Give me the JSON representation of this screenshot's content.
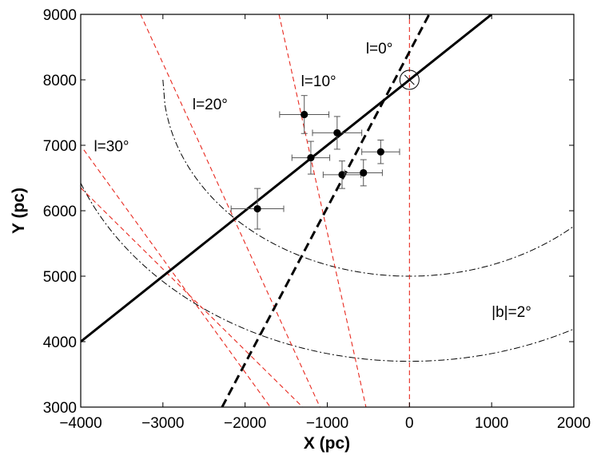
{
  "chart_data": {
    "type": "scatter",
    "xlabel": "X (pc)",
    "ylabel": "Y (pc)",
    "xlim": [
      -4000,
      2000
    ],
    "ylim": [
      3000,
      9000
    ],
    "x_ticks": [
      -4000,
      -3000,
      -2000,
      -1000,
      0,
      1000,
      2000
    ],
    "y_ticks": [
      3000,
      4000,
      5000,
      6000,
      7000,
      8000,
      9000
    ],
    "x_tick_labels": [
      "−4000",
      "−3000",
      "−2000",
      "−1000",
      "0",
      "1000",
      "2000"
    ],
    "y_tick_labels": [
      "3000",
      "4000",
      "5000",
      "6000",
      "7000",
      "8000",
      "9000"
    ],
    "grid": false,
    "sun_position": {
      "x": 0,
      "y": 8000
    },
    "points": [
      {
        "x": -1850,
        "y": 6030,
        "xerr": 320,
        "yerr": 310
      },
      {
        "x": -1280,
        "y": 7470,
        "xerr": 300,
        "yerr": 290
      },
      {
        "x": -1200,
        "y": 6810,
        "xerr": 230,
        "yerr": 250
      },
      {
        "x": -880,
        "y": 7190,
        "xerr": 300,
        "yerr": 250
      },
      {
        "x": -820,
        "y": 6550,
        "xerr": 230,
        "yerr": 210
      },
      {
        "x": -560,
        "y": 6580,
        "xerr": 230,
        "yerr": 200
      },
      {
        "x": -350,
        "y": 6900,
        "xerr": 230,
        "yerr": 180
      }
    ],
    "fit_solid": {
      "x": [
        -4000,
        1000
      ],
      "y": [
        4000,
        9000
      ]
    },
    "fit_dashed": {
      "x": [
        -2280,
        240
      ],
      "y": [
        3000,
        9000
      ]
    },
    "longitude_lines": [
      {
        "label": "l=0",
        "x": [
          0,
          0
        ],
        "y": [
          3000,
          9000
        ]
      },
      {
        "label": "l=10",
        "x": [
          -1587,
          -529
        ],
        "y": [
          9000,
          3000
        ]
      },
      {
        "label": "l=20",
        "x": [
          -3272,
          -1089
        ],
        "y": [
          9000,
          3000
        ]
      },
      {
        "label": "l=30",
        "x": [
          -3962,
          -1693
        ],
        "y": [
          6930,
          3000
        ]
      },
      {
        "label": "l=30",
        "x": [
          -4000,
          -1300
        ],
        "y": [
          6350,
          3000
        ]
      }
    ],
    "latitude_curves": [
      {
        "label": "|b|=2",
        "radius": 3000
      },
      {
        "label": "|b|=2",
        "radius": 4300
      }
    ],
    "annotations": [
      {
        "text": "l=0°",
        "x": -530,
        "y": 8400
      },
      {
        "text": "l=10°",
        "x": -1320,
        "y": 7900
      },
      {
        "text": "l=20°",
        "x": -2640,
        "y": 7550
      },
      {
        "text": "l=30°",
        "x": -3840,
        "y": 6910
      },
      {
        "text": "|b|=2°",
        "x": 1000,
        "y": 4380
      }
    ]
  }
}
